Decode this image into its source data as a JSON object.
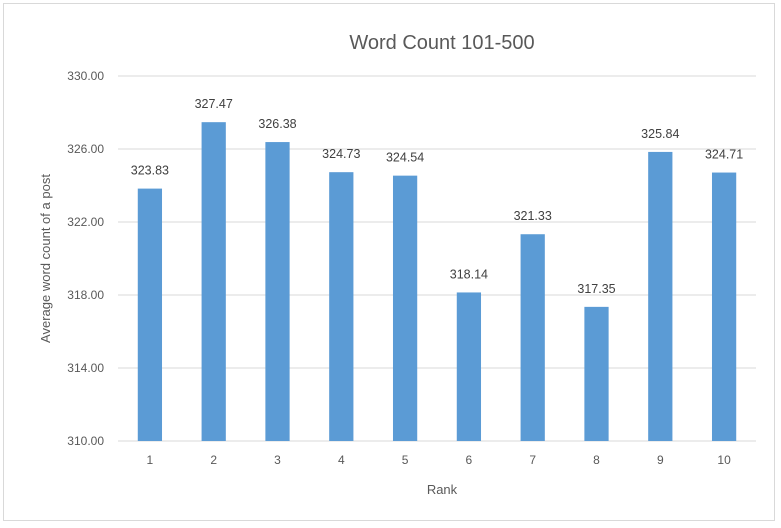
{
  "chart_data": {
    "type": "bar",
    "title": "Word Count 101-500",
    "xlabel": "Rank",
    "ylabel": "Average word count of a post",
    "categories": [
      "1",
      "2",
      "3",
      "4",
      "5",
      "6",
      "7",
      "8",
      "9",
      "10"
    ],
    "values": [
      323.83,
      327.47,
      326.38,
      324.73,
      324.54,
      318.14,
      321.33,
      317.35,
      325.84,
      324.71
    ],
    "data_labels": [
      "323.83",
      "327.47",
      "326.38",
      "324.73",
      "324.54",
      "318.14",
      "321.33",
      "317.35",
      "325.84",
      "324.71"
    ],
    "ylim": [
      310,
      330
    ],
    "yticks": [
      310,
      314,
      318,
      322,
      326,
      330
    ],
    "ytick_labels": [
      "310.00",
      "314.00",
      "318.00",
      "322.00",
      "326.00",
      "330.00"
    ],
    "grid": true,
    "legend": "none",
    "bar_color": "#5b9bd5"
  }
}
